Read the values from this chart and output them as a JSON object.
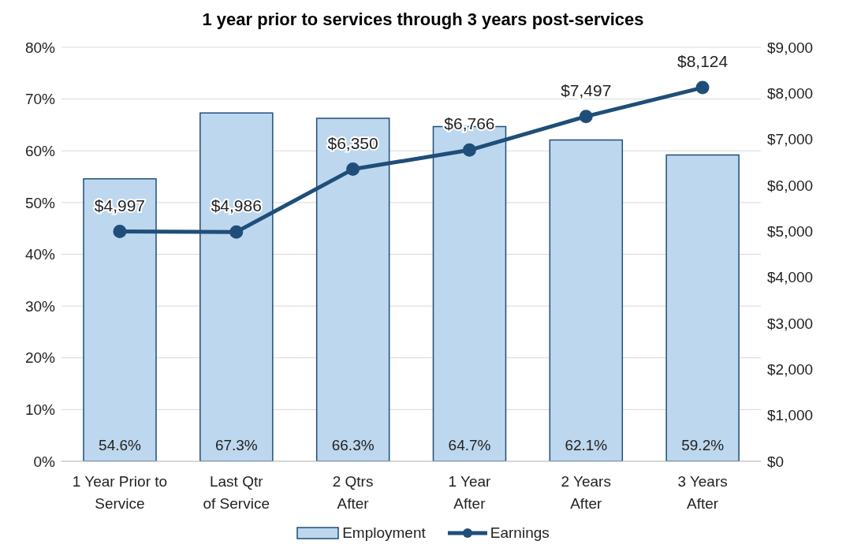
{
  "chart_data": {
    "type": "bar",
    "title": "1 year prior to services through 3 years post-services",
    "categories": [
      "1 Year Prior to\nService",
      "Last Qtr\nof Service",
      "2 Qtrs\nAfter",
      "1 Year\nAfter",
      "2 Years\nAfter",
      "3 Years\nAfter"
    ],
    "series": [
      {
        "name": "Employment",
        "color": "#bdd7ee",
        "values": [
          54.6,
          67.3,
          66.3,
          64.7,
          62.1,
          59.2
        ],
        "value_labels": [
          "54.6%",
          "67.3%",
          "66.3%",
          "64.7%",
          "62.1%",
          "59.2%"
        ]
      },
      {
        "name": "Earnings",
        "type": "line",
        "axis": "y2",
        "color": "#1f4e79",
        "marker": "circle",
        "values": [
          4997,
          4986,
          6350,
          6766,
          7497,
          8124
        ],
        "value_labels": [
          "$4,997",
          "$4,986",
          "$6,350",
          "$6,766",
          "$7,497",
          "$8,124"
        ]
      }
    ],
    "ylim": [
      0,
      80
    ],
    "yticks": [
      {
        "value": 0,
        "label": "0%"
      },
      {
        "value": 10,
        "label": "10%"
      },
      {
        "value": 20,
        "label": "20%"
      },
      {
        "value": 30,
        "label": "30%"
      },
      {
        "value": 40,
        "label": "40%"
      },
      {
        "value": 50,
        "label": "50%"
      },
      {
        "value": 60,
        "label": "60%"
      },
      {
        "value": 70,
        "label": "70%"
      },
      {
        "value": 80,
        "label": "80%"
      }
    ],
    "y2lim": [
      0,
      9000
    ],
    "y2ticks": [
      {
        "value": 0,
        "label": "$0"
      },
      {
        "value": 1000,
        "label": "$1,000"
      },
      {
        "value": 2000,
        "label": "$2,000"
      },
      {
        "value": 3000,
        "label": "$3,000"
      },
      {
        "value": 4000,
        "label": "$4,000"
      },
      {
        "value": 5000,
        "label": "$5,000"
      },
      {
        "value": 6000,
        "label": "$6,000"
      },
      {
        "value": 7000,
        "label": "$7,000"
      },
      {
        "value": 8000,
        "label": "$8,000"
      },
      {
        "value": 9000,
        "label": "$9,000"
      }
    ],
    "grid": "y",
    "legend": "bottom"
  }
}
